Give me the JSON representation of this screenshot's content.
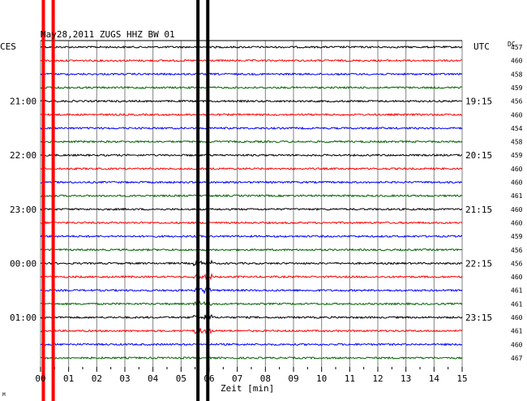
{
  "chart_data": {
    "type": "line",
    "title": "May28,2011  ZUGS HHZ BW 01",
    "left_timezone": "CES",
    "right_timezone": "UTC",
    "dc_label": "DC",
    "xlabel": "Zeit [min]",
    "xlim": [
      0,
      15
    ],
    "x_ticks": [
      "00",
      "01",
      "02",
      "03",
      "04",
      "05",
      "06",
      "07",
      "08",
      "09",
      "10",
      "11",
      "12",
      "13",
      "14",
      "15"
    ],
    "grid": true,
    "trace_colors": [
      "#000000",
      "#ff0000",
      "#0000ff",
      "#006400"
    ],
    "left_hour_labels": [
      {
        "row": 4,
        "text": "21:00"
      },
      {
        "row": 8,
        "text": "22:00"
      },
      {
        "row": 12,
        "text": "23:00"
      },
      {
        "row": 16,
        "text": "00:00"
      },
      {
        "row": 20,
        "text": "01:00"
      }
    ],
    "right_hour_labels": [
      {
        "row": 4,
        "text": "19:15"
      },
      {
        "row": 8,
        "text": "20:15"
      },
      {
        "row": 12,
        "text": "21:15"
      },
      {
        "row": 16,
        "text": "22:15"
      },
      {
        "row": 20,
        "text": "23:15"
      }
    ],
    "dc_values": [
      "457",
      "460",
      "458",
      "459",
      "456",
      "460",
      "454",
      "458",
      "459",
      "460",
      "460",
      "461",
      "460",
      "460",
      "459",
      "456",
      "456",
      "460",
      "461",
      "461",
      "460",
      "461",
      "460",
      "467"
    ],
    "event_minutes": [
      5.6,
      5.95
    ],
    "red_marker_minutes": [
      0.1,
      0.45
    ],
    "footer_mark": "M"
  }
}
